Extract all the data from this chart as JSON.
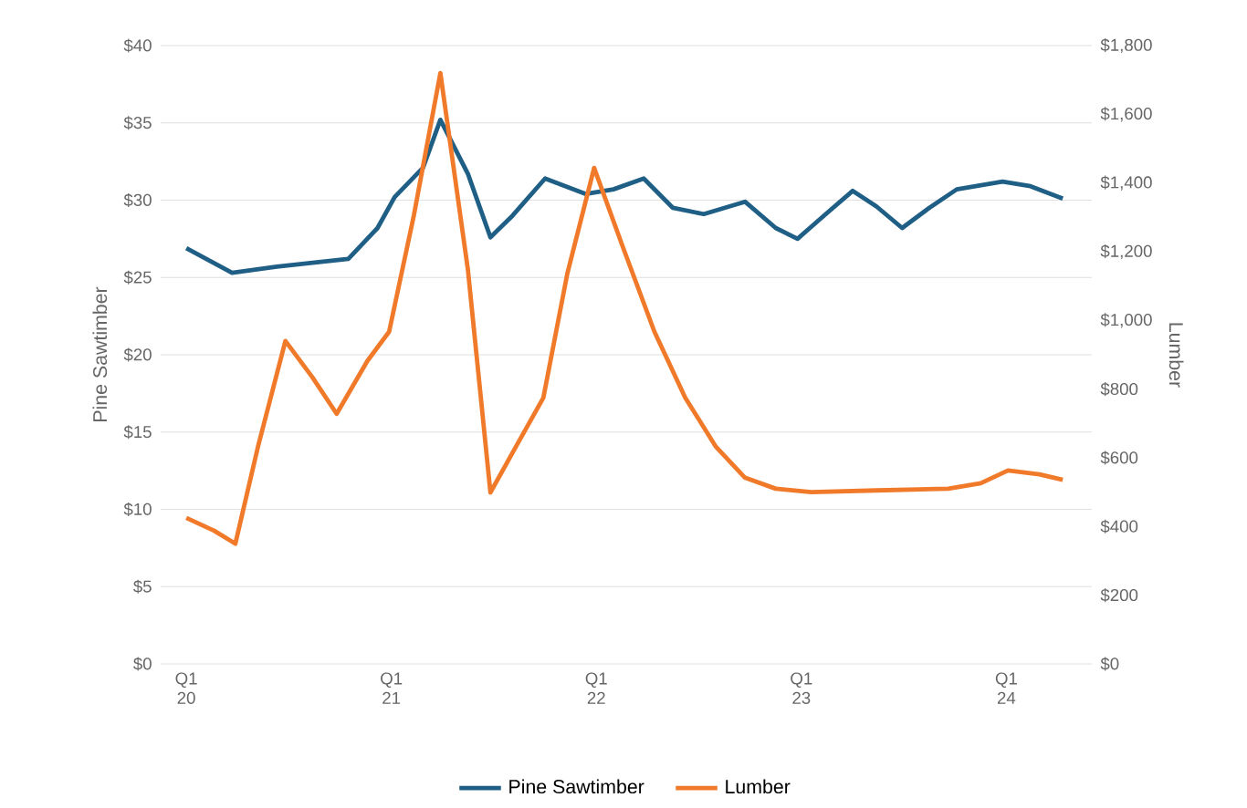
{
  "chart_data": {
    "type": "line",
    "ylabel": "Pine Sawtimber",
    "y2label": "Lumber",
    "xlim": [
      "2019-11-16",
      "2024-06-01"
    ],
    "xticks": [
      {
        "value": "2020-01-01",
        "label": "Q1 20"
      },
      {
        "value": "2021-01-01",
        "label": "Q1 21"
      },
      {
        "value": "2022-01-01",
        "label": "Q1 22"
      },
      {
        "value": "2023-01-01",
        "label": "Q1 23"
      },
      {
        "value": "2024-01-01",
        "label": "Q1 24"
      }
    ],
    "ylim": [
      0,
      40
    ],
    "yticks": [
      {
        "value": 0,
        "label": "$0"
      },
      {
        "value": 5,
        "label": "$5"
      },
      {
        "value": 10,
        "label": "$10"
      },
      {
        "value": 15,
        "label": "$15"
      },
      {
        "value": 20,
        "label": "$20"
      },
      {
        "value": 25,
        "label": "$25"
      },
      {
        "value": 30,
        "label": "$30"
      },
      {
        "value": 35,
        "label": "$35"
      },
      {
        "value": 40,
        "label": "$40"
      }
    ],
    "y2lim": [
      0,
      1800
    ],
    "y2ticks": [
      {
        "value": 0,
        "label": "$0"
      },
      {
        "value": 200,
        "label": "$200"
      },
      {
        "value": 400,
        "label": "$400"
      },
      {
        "value": 600,
        "label": "$600"
      },
      {
        "value": 800,
        "label": "$800"
      },
      {
        "value": 1000,
        "label": "$1,000"
      },
      {
        "value": 1200,
        "label": "$1,200"
      },
      {
        "value": 1400,
        "label": "$1,400"
      },
      {
        "value": 1600,
        "label": "$1,600"
      },
      {
        "value": 1800,
        "label": "$1,800"
      }
    ],
    "grid": "y",
    "legend": "bottom",
    "line_style": "solid",
    "marker": "none",
    "series": [
      {
        "name": "Pine Sawtimber",
        "color": "#1f5f86",
        "x": [
          "2020-01-01",
          "2020-03-22",
          "2020-06-10",
          "2020-10-16",
          "2020-12-07",
          "2021-01-07",
          "2021-02-25",
          "2021-03-28",
          "2021-05-16",
          "2021-06-25",
          "2021-08-04",
          "2021-10-01",
          "2021-12-13",
          "2022-02-01",
          "2022-03-25",
          "2022-05-16",
          "2022-07-10",
          "2022-09-22",
          "2022-11-16",
          "2022-12-25",
          "2023-02-13",
          "2023-04-01",
          "2023-05-13",
          "2023-06-28",
          "2023-08-16",
          "2023-10-04",
          "2023-12-25",
          "2024-02-13",
          "2024-04-10"
        ],
        "values": [
          26.9,
          25.3,
          25.7,
          26.2,
          28.2,
          30.2,
          32.1,
          35.2,
          31.7,
          27.6,
          29.0,
          31.4,
          30.4,
          30.7,
          31.4,
          29.5,
          29.1,
          29.9,
          28.2,
          27.5,
          29.1,
          30.6,
          29.6,
          28.2,
          29.5,
          30.7,
          31.2,
          30.9,
          30.1
        ]
      },
      {
        "name": "Lumber",
        "color": "#f07a2a",
        "axis": "y2",
        "x": [
          "2020-01-01",
          "2020-02-19",
          "2020-03-28",
          "2020-05-07",
          "2020-06-25",
          "2020-08-13",
          "2020-09-25",
          "2020-11-19",
          "2020-12-28",
          "2021-02-10",
          "2021-03-28",
          "2021-05-16",
          "2021-06-25",
          "2021-08-10",
          "2021-09-28",
          "2021-11-10",
          "2021-12-28",
          "2022-02-16",
          "2022-04-13",
          "2022-06-07",
          "2022-08-01",
          "2022-09-22",
          "2022-11-16",
          "2023-01-19",
          "2023-05-13",
          "2023-09-19",
          "2023-11-16",
          "2024-01-04",
          "2024-02-28",
          "2024-04-10"
        ],
        "values": [
          425,
          388,
          350,
          632,
          940,
          834,
          728,
          882,
          967,
          1306,
          1720,
          1147,
          499,
          632,
          775,
          1136,
          1444,
          1216,
          967,
          775,
          632,
          542,
          510,
          500,
          505,
          510,
          526,
          563,
          552,
          536
        ]
      }
    ]
  }
}
